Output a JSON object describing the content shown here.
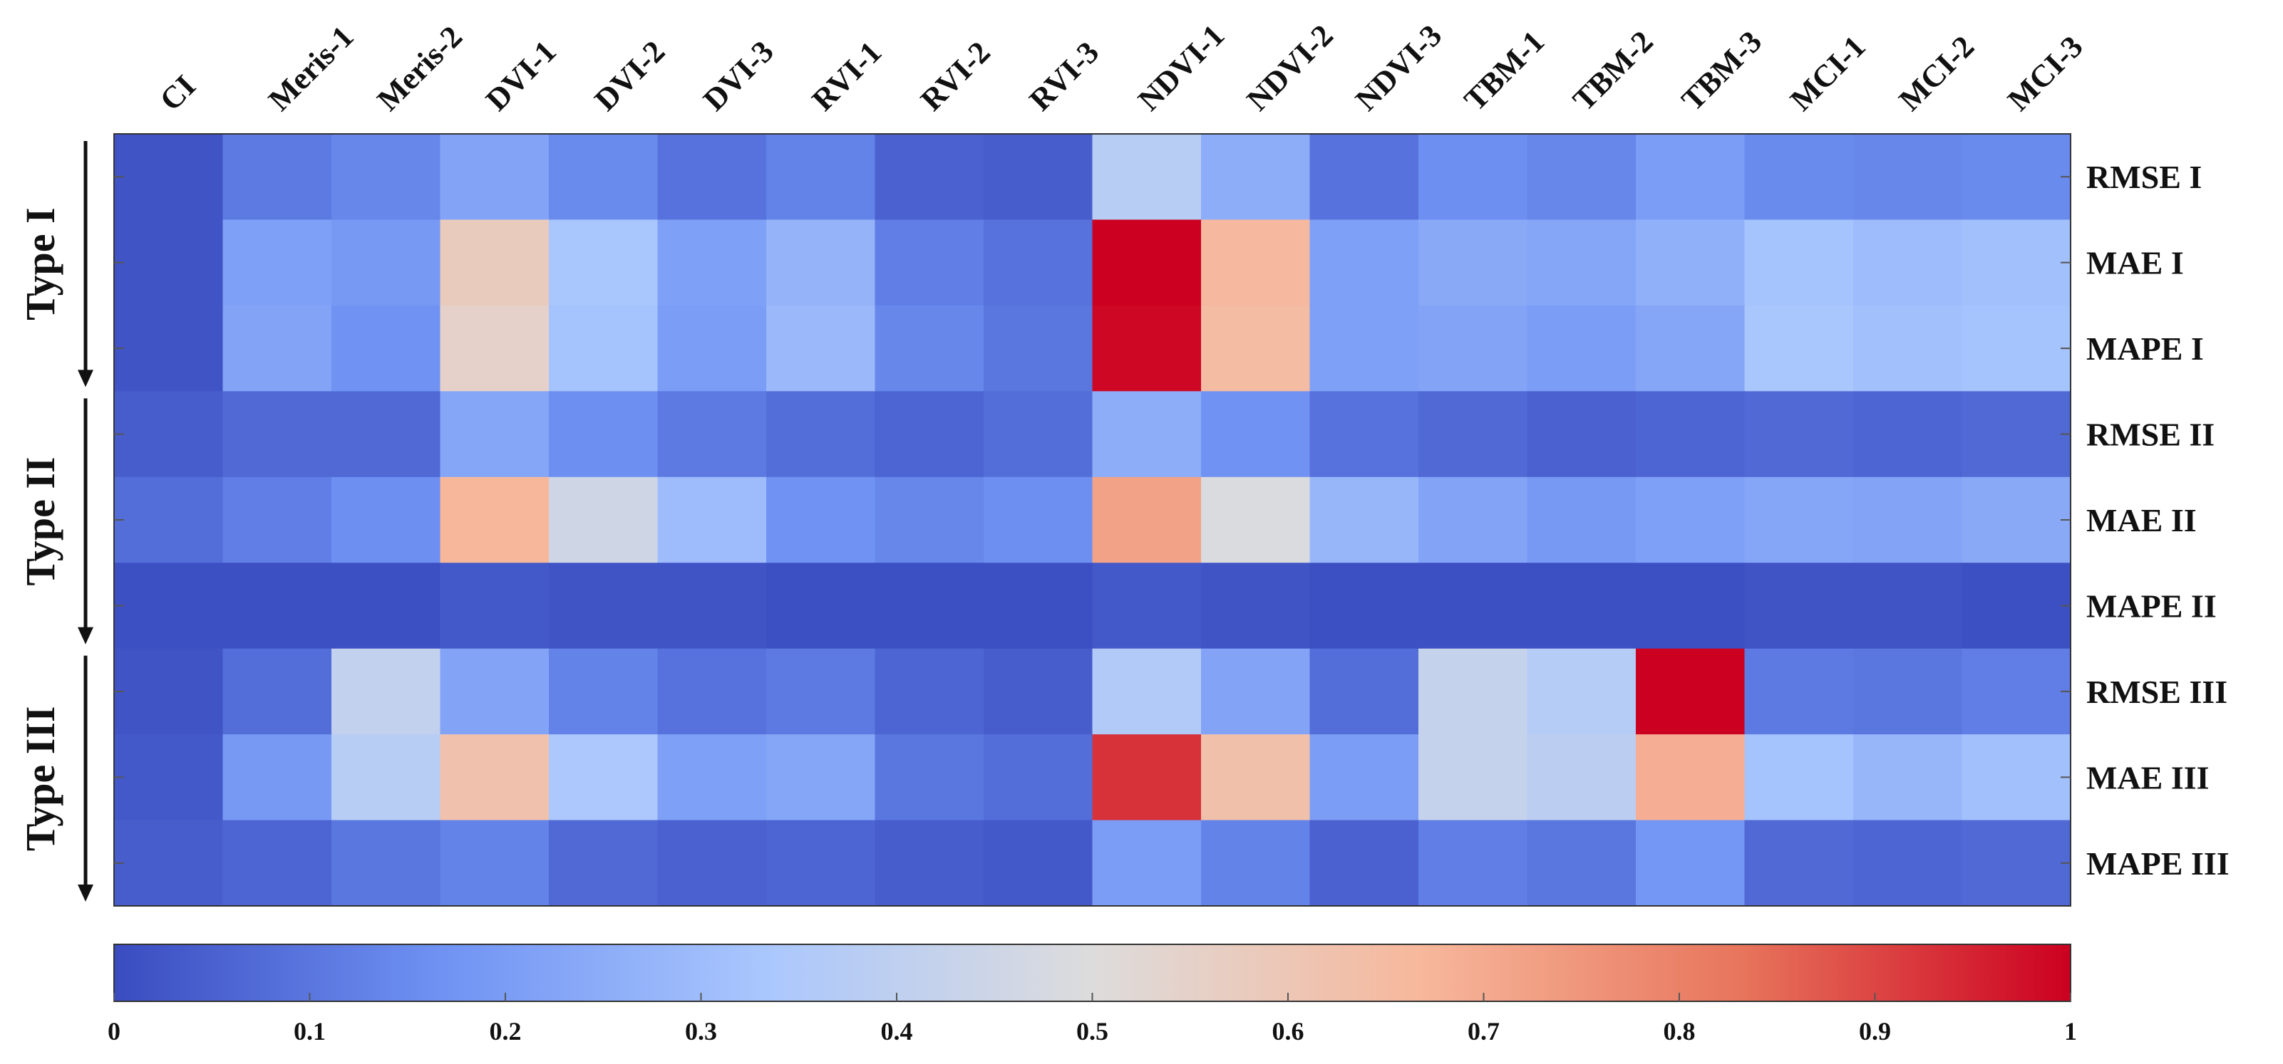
{
  "chart_data": {
    "type": "heatmap",
    "title": "",
    "columns": [
      "CI",
      "Meris-1",
      "Meris-2",
      "DVI-1",
      "DVI-2",
      "DVI-3",
      "RVI-1",
      "RVI-2",
      "RVI-3",
      "NDVI-1",
      "NDVI-2",
      "NDVI-3",
      "TBM-1",
      "TBM-2",
      "TBM-3",
      "MCI-1",
      "MCI-2",
      "MCI-3"
    ],
    "rows": [
      "RMSE I",
      "MAE I",
      "MAPE I",
      "RMSE II",
      "MAE II",
      "MAPE II",
      "RMSE III",
      "MAE III",
      "MAPE III"
    ],
    "groups": [
      {
        "label": "Type I",
        "rows": [
          0,
          2
        ]
      },
      {
        "label": "Type II",
        "rows": [
          3,
          5
        ]
      },
      {
        "label": "Type III",
        "rows": [
          6,
          8
        ]
      }
    ],
    "values": [
      [
        0.02,
        0.11,
        0.14,
        0.22,
        0.15,
        0.09,
        0.13,
        0.05,
        0.04,
        0.38,
        0.25,
        0.09,
        0.16,
        0.14,
        0.2,
        0.15,
        0.14,
        0.15
      ],
      [
        0.02,
        0.21,
        0.19,
        0.58,
        0.33,
        0.21,
        0.27,
        0.12,
        0.09,
        1.0,
        0.66,
        0.21,
        0.24,
        0.23,
        0.26,
        0.32,
        0.3,
        0.31
      ],
      [
        0.02,
        0.22,
        0.17,
        0.55,
        0.32,
        0.2,
        0.29,
        0.14,
        0.1,
        0.99,
        0.65,
        0.21,
        0.22,
        0.2,
        0.23,
        0.33,
        0.31,
        0.32
      ],
      [
        0.04,
        0.07,
        0.07,
        0.23,
        0.16,
        0.11,
        0.08,
        0.06,
        0.08,
        0.25,
        0.17,
        0.09,
        0.07,
        0.05,
        0.06,
        0.07,
        0.06,
        0.07
      ],
      [
        0.08,
        0.12,
        0.16,
        0.67,
        0.45,
        0.3,
        0.17,
        0.14,
        0.16,
        0.72,
        0.49,
        0.28,
        0.22,
        0.19,
        0.21,
        0.23,
        0.22,
        0.24
      ],
      [
        0.01,
        0.01,
        0.01,
        0.03,
        0.02,
        0.02,
        0.01,
        0.01,
        0.01,
        0.03,
        0.02,
        0.01,
        0.01,
        0.01,
        0.01,
        0.02,
        0.02,
        0.01
      ],
      [
        0.02,
        0.08,
        0.41,
        0.22,
        0.13,
        0.09,
        0.11,
        0.06,
        0.04,
        0.36,
        0.22,
        0.08,
        0.42,
        0.37,
        1.0,
        0.11,
        0.1,
        0.12
      ],
      [
        0.03,
        0.19,
        0.38,
        0.62,
        0.34,
        0.21,
        0.23,
        0.1,
        0.08,
        0.93,
        0.63,
        0.2,
        0.42,
        0.39,
        0.69,
        0.32,
        0.28,
        0.31
      ],
      [
        0.04,
        0.06,
        0.1,
        0.13,
        0.07,
        0.05,
        0.06,
        0.04,
        0.03,
        0.2,
        0.13,
        0.05,
        0.12,
        0.1,
        0.18,
        0.07,
        0.06,
        0.07
      ]
    ],
    "colorbar": {
      "min": 0,
      "max": 1,
      "ticks": [
        "0",
        "0.1",
        "0.2",
        "0.3",
        "0.4",
        "0.5",
        "0.6",
        "0.7",
        "0.8",
        "0.9",
        "1"
      ]
    },
    "colormap": [
      "#3a4cc0",
      "#6f92f3",
      "#aac7fd",
      "#dddcdc",
      "#f7b89c",
      "#e7745b",
      "#cc0020"
    ],
    "grid": false
  }
}
